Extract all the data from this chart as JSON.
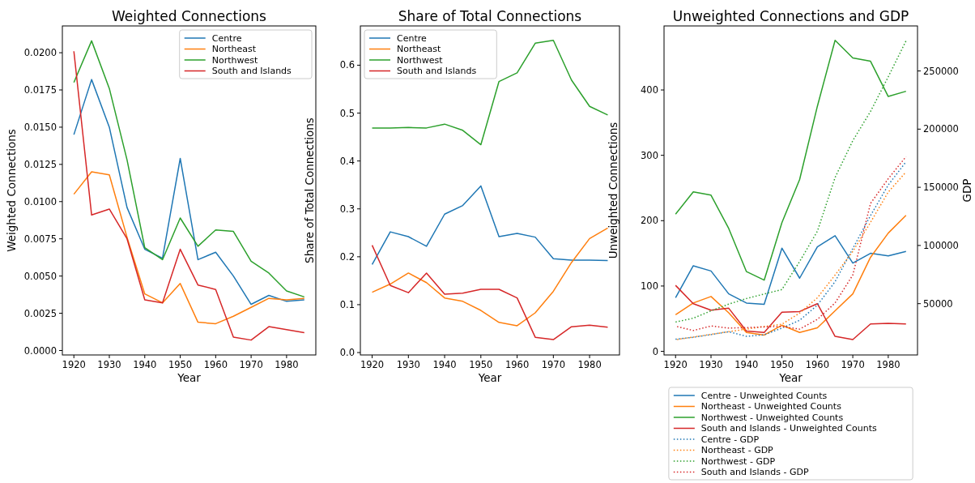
{
  "chart_data": [
    {
      "type": "line",
      "title": "Weighted Connections",
      "xlabel": "Year",
      "ylabel": "Weighted Connections",
      "legend": "top right",
      "grid": false,
      "x": [
        1920,
        1925,
        1930,
        1935,
        1940,
        1945,
        1950,
        1955,
        1960,
        1965,
        1970,
        1975,
        1980,
        1985
      ],
      "xlim": [
        1916.75,
        1988.25
      ],
      "xticks": [
        1920,
        1930,
        1940,
        1950,
        1960,
        1970,
        1980
      ],
      "ylim": [
        -0.0003,
        0.0218
      ],
      "yticks": [
        {
          "value": 0,
          "label": "0.0000"
        },
        {
          "value": 0.0025,
          "label": "0.0025"
        },
        {
          "value": 0.005,
          "label": "0.0050"
        },
        {
          "value": 0.0075,
          "label": "0.0075"
        },
        {
          "value": 0.01,
          "label": "0.0100"
        },
        {
          "value": 0.0125,
          "label": "0.0125"
        },
        {
          "value": 0.015,
          "label": "0.0150"
        },
        {
          "value": 0.0175,
          "label": "0.0175"
        },
        {
          "value": 0.02,
          "label": "0.0200"
        }
      ],
      "series": [
        {
          "name": "Centre",
          "color": "#1f77b4",
          "values": [
            0.0145,
            0.0182,
            0.015,
            0.0096,
            0.0068,
            0.0062,
            0.0129,
            0.0061,
            0.0066,
            0.005,
            0.0031,
            0.0037,
            0.0033,
            0.0034
          ]
        },
        {
          "name": "Northeast",
          "color": "#ff7f0e",
          "values": [
            0.0105,
            0.012,
            0.0118,
            0.0076,
            0.0038,
            0.0032,
            0.0045,
            0.0019,
            0.0018,
            0.0023,
            0.0029,
            0.0035,
            0.0034,
            0.0035
          ]
        },
        {
          "name": "Northwest",
          "color": "#2ca02c",
          "values": [
            0.018,
            0.0208,
            0.0176,
            0.0128,
            0.0069,
            0.0061,
            0.0089,
            0.007,
            0.0081,
            0.008,
            0.006,
            0.0052,
            0.004,
            0.0036
          ]
        },
        {
          "name": "South and Islands",
          "color": "#d62728",
          "values": [
            0.0201,
            0.0091,
            0.0095,
            0.0075,
            0.0034,
            0.0032,
            0.0068,
            0.0044,
            0.0041,
            0.0009,
            0.0007,
            0.0016,
            0.0014,
            0.0012
          ]
        }
      ]
    },
    {
      "type": "line",
      "title": "Share of Total Connections",
      "xlabel": "Year",
      "ylabel": "Share of Total Connections",
      "legend": "top left",
      "grid": false,
      "x": [
        1920,
        1925,
        1930,
        1935,
        1940,
        1945,
        1950,
        1955,
        1960,
        1965,
        1970,
        1975,
        1980,
        1985
      ],
      "xlim": [
        1916.75,
        1988.25
      ],
      "xticks": [
        1920,
        1930,
        1940,
        1950,
        1960,
        1970,
        1980
      ],
      "ylim": [
        -0.005,
        0.682
      ],
      "yticks": [
        {
          "value": 0,
          "label": "0.0"
        },
        0.1,
        0.2,
        0.3,
        0.4,
        0.5,
        0.6
      ],
      "series": [
        {
          "name": "Centre",
          "color": "#1f77b4",
          "values": [
            0.184,
            0.252,
            0.242,
            0.222,
            0.289,
            0.307,
            0.348,
            0.242,
            0.249,
            0.241,
            0.196,
            0.193,
            0.193,
            0.192
          ]
        },
        {
          "name": "Northeast",
          "color": "#ff7f0e",
          "values": [
            0.126,
            0.143,
            0.166,
            0.146,
            0.114,
            0.107,
            0.088,
            0.063,
            0.056,
            0.083,
            0.128,
            0.188,
            0.238,
            0.26
          ]
        },
        {
          "name": "Northwest",
          "color": "#2ca02c",
          "values": [
            0.469,
            0.469,
            0.47,
            0.469,
            0.477,
            0.464,
            0.434,
            0.566,
            0.584,
            0.646,
            0.652,
            0.569,
            0.514,
            0.496
          ]
        },
        {
          "name": "South and Islands",
          "color": "#d62728",
          "values": [
            0.224,
            0.14,
            0.125,
            0.166,
            0.122,
            0.124,
            0.132,
            0.132,
            0.114,
            0.032,
            0.027,
            0.054,
            0.057,
            0.053
          ]
        }
      ]
    },
    {
      "type": "line",
      "title": "Unweighted Connections and GDP",
      "xlabel": "Year",
      "ylabel": "Unweighted Connections",
      "y2label": "GDP",
      "legend": "bottom",
      "grid": false,
      "x": [
        1920,
        1925,
        1930,
        1935,
        1940,
        1945,
        1950,
        1955,
        1960,
        1965,
        1970,
        1975,
        1980,
        1985
      ],
      "xlim": [
        1916.75,
        1988.25
      ],
      "xticks": [
        1920,
        1930,
        1940,
        1950,
        1960,
        1970,
        1980
      ],
      "ylim": [
        -5.5,
        498
      ],
      "yticks": [
        0,
        100,
        200,
        300,
        400
      ],
      "y2lim": [
        5900,
        288700
      ],
      "y2ticks": [
        50000,
        100000,
        150000,
        200000,
        250000
      ],
      "series": [
        {
          "name": "Centre - Unweighted Counts",
          "color": "#1f77b4",
          "values": [
            82,
            131,
            123,
            88,
            74,
            72,
            158,
            112,
            160,
            177,
            135,
            150,
            146,
            153
          ]
        },
        {
          "name": "Northeast - Unweighted Counts",
          "color": "#ff7f0e",
          "values": [
            56,
            74,
            84,
            59,
            29,
            25,
            40,
            29,
            36,
            62,
            88,
            144,
            181,
            208
          ]
        },
        {
          "name": "Northwest - Unweighted Counts",
          "color": "#2ca02c",
          "values": [
            210,
            244,
            239,
            188,
            122,
            109,
            197,
            263,
            375,
            476,
            449,
            444,
            390,
            398
          ]
        },
        {
          "name": "South and Islands - Unweighted Counts",
          "color": "#d62728",
          "values": [
            101,
            73,
            63,
            66,
            31,
            29,
            60,
            61,
            73,
            23,
            18,
            42,
            43,
            42
          ]
        },
        {
          "name": "Centre - GDP",
          "color": "#1f77b4",
          "axis": "y2",
          "line_style": "dotted",
          "values": [
            19400,
            21100,
            23400,
            25900,
            21900,
            23200,
            29000,
            35700,
            48700,
            68900,
            97400,
            125700,
            152000,
            171900
          ]
        },
        {
          "name": "Northeast - GDP",
          "color": "#ff7f0e",
          "axis": "y2",
          "line_style": "dotted",
          "values": [
            19000,
            21300,
            23600,
            25900,
            28100,
            30400,
            32300,
            41900,
            55000,
            74600,
            94900,
            119900,
            145900,
            163200
          ]
        },
        {
          "name": "Northwest - GDP",
          "color": "#2ca02c",
          "axis": "y2",
          "line_style": "dotted",
          "values": [
            34200,
            37500,
            43800,
            49600,
            54400,
            58300,
            62100,
            86200,
            112200,
            158400,
            190100,
            215200,
            245000,
            275800
          ]
        },
        {
          "name": "South and Islands - GDP",
          "color": "#d62728",
          "axis": "y2",
          "line_style": "dotted",
          "values": [
            30600,
            26900,
            30800,
            29000,
            29400,
            30000,
            30400,
            28100,
            36500,
            50600,
            74600,
            136200,
            157400,
            176300
          ]
        }
      ]
    }
  ]
}
